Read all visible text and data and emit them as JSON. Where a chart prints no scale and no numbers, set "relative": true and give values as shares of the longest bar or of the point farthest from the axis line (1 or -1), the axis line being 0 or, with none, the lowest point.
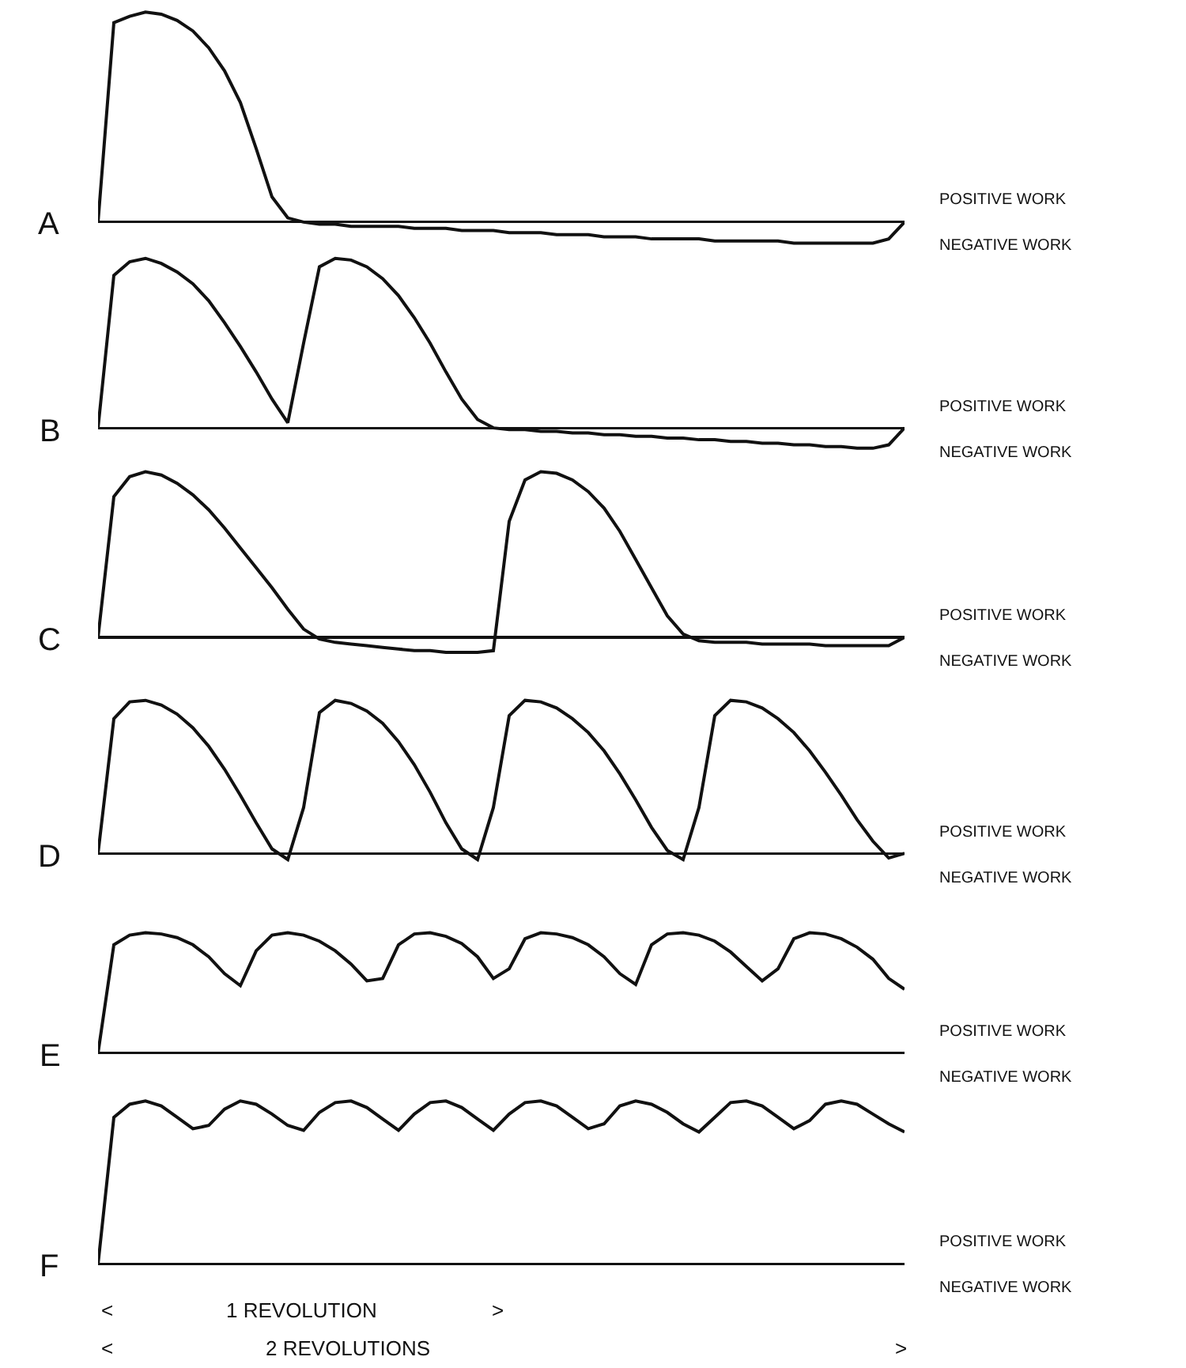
{
  "chart_data": [
    {
      "type": "line",
      "relative": true,
      "marker": "none",
      "categories": [
        null,
        null,
        null,
        null,
        null,
        null,
        null,
        null,
        null,
        null,
        null,
        null,
        null,
        null,
        null,
        null,
        null,
        null,
        null,
        null,
        null,
        null,
        null,
        null,
        null,
        null,
        null,
        null,
        null,
        null,
        null,
        null,
        null,
        null,
        null,
        null,
        null,
        null,
        null,
        null,
        null,
        null,
        null,
        null,
        null,
        null,
        null,
        null,
        null,
        null,
        null,
        null
      ],
      "series": [
        {
          "color": "#111111",
          "values": [
            0,
            0.95,
            0.98,
            1.0,
            0.99,
            0.96,
            0.91,
            0.83,
            0.72,
            0.57,
            0.35,
            0.12,
            0.02,
            0,
            -0.01,
            -0.01,
            -0.02,
            -0.02,
            -0.02,
            -0.02,
            -0.03,
            -0.03,
            -0.03,
            -0.04,
            -0.04,
            -0.04,
            -0.05,
            -0.05,
            -0.05,
            -0.06,
            -0.06,
            -0.06,
            -0.07,
            -0.07,
            -0.07,
            -0.08,
            -0.08,
            -0.08,
            -0.08,
            -0.09,
            -0.09,
            -0.09,
            -0.09,
            -0.09,
            -0.1,
            -0.1,
            -0.1,
            -0.1,
            -0.1,
            -0.1,
            -0.08,
            0
          ]
        }
      ],
      "annotations": [
        "A",
        "POSITIVE WORK",
        "NEGATIVE WORK"
      ]
    },
    {
      "type": "line",
      "relative": true,
      "marker": "none",
      "categories": [
        null,
        null,
        null,
        null,
        null,
        null,
        null,
        null,
        null,
        null,
        null,
        null,
        null,
        null,
        null,
        null,
        null,
        null,
        null,
        null,
        null,
        null,
        null,
        null,
        null,
        null,
        null,
        null,
        null,
        null,
        null,
        null,
        null,
        null,
        null,
        null,
        null,
        null,
        null,
        null,
        null,
        null,
        null,
        null,
        null,
        null,
        null,
        null,
        null,
        null,
        null,
        null
      ],
      "series": [
        {
          "color": "#111111",
          "values": [
            0,
            0.9,
            0.98,
            1.0,
            0.97,
            0.92,
            0.85,
            0.75,
            0.62,
            0.48,
            0.33,
            0.17,
            0.03,
            0.5,
            0.95,
            1.0,
            0.99,
            0.95,
            0.88,
            0.78,
            0.65,
            0.5,
            0.33,
            0.17,
            0.05,
            0,
            -0.01,
            -0.01,
            -0.02,
            -0.02,
            -0.03,
            -0.03,
            -0.04,
            -0.04,
            -0.05,
            -0.05,
            -0.06,
            -0.06,
            -0.07,
            -0.07,
            -0.08,
            -0.08,
            -0.09,
            -0.09,
            -0.1,
            -0.1,
            -0.11,
            -0.11,
            -0.12,
            -0.12,
            -0.1,
            0
          ]
        }
      ],
      "annotations": [
        "B",
        "POSITIVE WORK",
        "NEGATIVE WORK"
      ]
    },
    {
      "type": "line",
      "relative": true,
      "marker": "none",
      "categories": [
        null,
        null,
        null,
        null,
        null,
        null,
        null,
        null,
        null,
        null,
        null,
        null,
        null,
        null,
        null,
        null,
        null,
        null,
        null,
        null,
        null,
        null,
        null,
        null,
        null,
        null,
        null,
        null,
        null,
        null,
        null,
        null,
        null,
        null,
        null,
        null,
        null,
        null,
        null,
        null,
        null,
        null,
        null,
        null,
        null,
        null,
        null,
        null,
        null,
        null,
        null,
        null
      ],
      "series": [
        {
          "color": "#111111",
          "values": [
            0,
            0.85,
            0.97,
            1.0,
            0.98,
            0.93,
            0.86,
            0.77,
            0.66,
            0.54,
            0.42,
            0.3,
            0.17,
            0.05,
            -0.01,
            -0.03,
            -0.04,
            -0.05,
            -0.06,
            -0.07,
            -0.08,
            -0.08,
            -0.09,
            -0.09,
            -0.09,
            -0.08,
            0.7,
            0.95,
            1.0,
            0.99,
            0.95,
            0.88,
            0.78,
            0.64,
            0.47,
            0.3,
            0.13,
            0.02,
            -0.02,
            -0.03,
            -0.03,
            -0.03,
            -0.04,
            -0.04,
            -0.04,
            -0.04,
            -0.05,
            -0.05,
            -0.05,
            -0.05,
            -0.05,
            0
          ]
        }
      ],
      "annotations": [
        "C",
        "POSITIVE WORK",
        "NEGATIVE WORK"
      ]
    },
    {
      "type": "line",
      "relative": true,
      "marker": "none",
      "categories": [
        null,
        null,
        null,
        null,
        null,
        null,
        null,
        null,
        null,
        null,
        null,
        null,
        null,
        null,
        null,
        null,
        null,
        null,
        null,
        null,
        null,
        null,
        null,
        null,
        null,
        null,
        null,
        null,
        null,
        null,
        null,
        null,
        null,
        null,
        null,
        null,
        null,
        null,
        null,
        null,
        null,
        null,
        null,
        null,
        null,
        null,
        null,
        null,
        null,
        null,
        null,
        null
      ],
      "series": [
        {
          "color": "#111111",
          "values": [
            0,
            0.88,
            0.99,
            1.0,
            0.97,
            0.91,
            0.82,
            0.7,
            0.55,
            0.38,
            0.2,
            0.03,
            -0.04,
            0.3,
            0.92,
            1.0,
            0.98,
            0.93,
            0.85,
            0.73,
            0.58,
            0.4,
            0.2,
            0.03,
            -0.04,
            0.3,
            0.9,
            1.0,
            0.99,
            0.95,
            0.88,
            0.79,
            0.67,
            0.52,
            0.35,
            0.17,
            0.02,
            -0.04,
            0.3,
            0.9,
            1.0,
            0.99,
            0.95,
            0.88,
            0.79,
            0.67,
            0.53,
            0.38,
            0.22,
            0.08,
            -0.03,
            0
          ]
        }
      ],
      "annotations": [
        "D",
        "POSITIVE WORK",
        "NEGATIVE WORK"
      ]
    },
    {
      "type": "line",
      "relative": true,
      "marker": "none",
      "categories": [
        null,
        null,
        null,
        null,
        null,
        null,
        null,
        null,
        null,
        null,
        null,
        null,
        null,
        null,
        null,
        null,
        null,
        null,
        null,
        null,
        null,
        null,
        null,
        null,
        null,
        null,
        null,
        null,
        null,
        null,
        null,
        null,
        null,
        null,
        null,
        null,
        null,
        null,
        null,
        null,
        null,
        null,
        null,
        null,
        null,
        null,
        null,
        null,
        null,
        null,
        null,
        null
      ],
      "series": [
        {
          "color": "#111111",
          "values": [
            0,
            0.9,
            0.98,
            1.0,
            0.99,
            0.96,
            0.9,
            0.8,
            0.66,
            0.56,
            0.85,
            0.98,
            1.0,
            0.98,
            0.93,
            0.85,
            0.74,
            0.6,
            0.62,
            0.9,
            0.99,
            1.0,
            0.97,
            0.91,
            0.8,
            0.62,
            0.7,
            0.95,
            1.0,
            0.99,
            0.96,
            0.9,
            0.8,
            0.66,
            0.57,
            0.9,
            0.99,
            1.0,
            0.98,
            0.93,
            0.84,
            0.72,
            0.6,
            0.7,
            0.95,
            1.0,
            0.99,
            0.95,
            0.88,
            0.78,
            0.62,
            0.53
          ]
        }
      ],
      "annotations": [
        "E",
        "POSITIVE WORK",
        "NEGATIVE WORK"
      ]
    },
    {
      "type": "line",
      "relative": true,
      "marker": "none",
      "categories": [
        null,
        null,
        null,
        null,
        null,
        null,
        null,
        null,
        null,
        null,
        null,
        null,
        null,
        null,
        null,
        null,
        null,
        null,
        null,
        null,
        null,
        null,
        null,
        null,
        null,
        null,
        null,
        null,
        null,
        null,
        null,
        null,
        null,
        null,
        null,
        null,
        null,
        null,
        null,
        null,
        null,
        null,
        null,
        null,
        null,
        null,
        null,
        null,
        null,
        null,
        null,
        null
      ],
      "series": [
        {
          "color": "#111111",
          "values": [
            0,
            0.9,
            0.98,
            1.0,
            0.97,
            0.9,
            0.83,
            0.85,
            0.95,
            1.0,
            0.98,
            0.92,
            0.85,
            0.82,
            0.93,
            0.99,
            1.0,
            0.96,
            0.89,
            0.82,
            0.92,
            0.99,
            1.0,
            0.96,
            0.89,
            0.82,
            0.92,
            0.99,
            1.0,
            0.97,
            0.9,
            0.83,
            0.86,
            0.97,
            1.0,
            0.98,
            0.93,
            0.86,
            0.81,
            0.9,
            0.99,
            1.0,
            0.97,
            0.9,
            0.83,
            0.88,
            0.98,
            1.0,
            0.98,
            0.92,
            0.86,
            0.81
          ]
        }
      ],
      "annotations": [
        "F",
        "POSITIVE WORK",
        "NEGATIVE WORK",
        "<",
        "1 REVOLUTION",
        ">",
        "<",
        "2 REVOLUTIONS",
        ">"
      ]
    }
  ]
}
